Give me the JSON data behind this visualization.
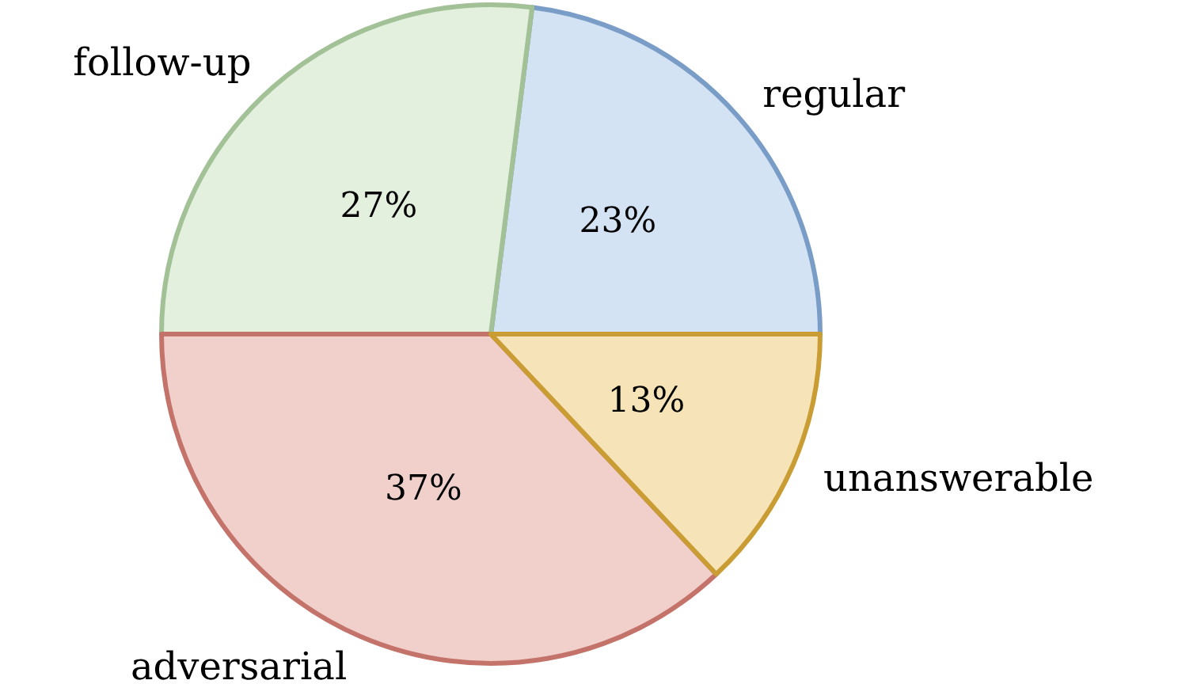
{
  "chart_data": {
    "type": "pie",
    "categories": [
      "regular",
      "follow-up",
      "adversarial",
      "unanswerable"
    ],
    "values": [
      23,
      27,
      37,
      13
    ],
    "colors": [
      "#d4e3f4",
      "#e3f0de",
      "#f1d0cc",
      "#f6e4b8"
    ],
    "value_labels": [
      "23%",
      "27%",
      "37%",
      "13%"
    ]
  }
}
